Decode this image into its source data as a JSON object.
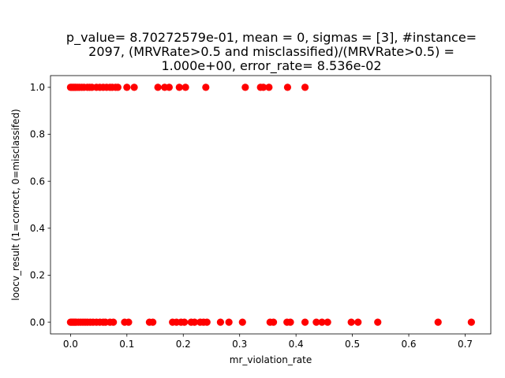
{
  "chart_data": {
    "type": "scatter",
    "title_lines": [
      "p_value= 8.70272579e-01, mean = 0, sigmas = [3], #instance=",
      "2097, (MRVRate>0.5 and misclassified)/(MRVRate>0.5) =",
      "1.000e+00, error_rate= 8.536e-02"
    ],
    "xlabel": "mr_violation_rate",
    "ylabel": "loocv_result (1=correct, 0=misclassifed)",
    "xlim": [
      -0.0355,
      0.7455
    ],
    "ylim": [
      -0.05,
      1.05
    ],
    "xticks": [
      0.0,
      0.1,
      0.2,
      0.3,
      0.4,
      0.5,
      0.6,
      0.7
    ],
    "xtick_labels": [
      "0.0",
      "0.1",
      "0.2",
      "0.3",
      "0.4",
      "0.5",
      "0.6",
      "0.7"
    ],
    "yticks": [
      0.0,
      0.2,
      0.4,
      0.6,
      0.8,
      1.0
    ],
    "ytick_labels": [
      "0.0",
      "0.2",
      "0.4",
      "0.6",
      "0.8",
      "1.0"
    ],
    "grid": false,
    "marker_color": "#ff0000",
    "series": [
      {
        "x": [
          0.0,
          0.002,
          0.004,
          0.006,
          0.008,
          0.01,
          0.013,
          0.016,
          0.02,
          0.024,
          0.03,
          0.034,
          0.038,
          0.046,
          0.052,
          0.058,
          0.064,
          0.07,
          0.074,
          0.08,
          0.084,
          0.1,
          0.113,
          0.155,
          0.167,
          0.175,
          0.193,
          0.204,
          0.24,
          0.31,
          0.337,
          0.342,
          0.352,
          0.385,
          0.416
        ],
        "y": [
          1,
          1,
          1,
          1,
          1,
          1,
          1,
          1,
          1,
          1,
          1,
          1,
          1,
          1,
          1,
          1,
          1,
          1,
          1,
          1,
          1,
          1,
          1,
          1,
          1,
          1,
          1,
          1,
          1,
          1,
          1,
          1,
          1,
          1,
          1
        ]
      },
      {
        "x": [
          0.0,
          0.002,
          0.004,
          0.006,
          0.008,
          0.01,
          0.014,
          0.018,
          0.022,
          0.026,
          0.03,
          0.035,
          0.04,
          0.046,
          0.052,
          0.058,
          0.062,
          0.07,
          0.076,
          0.096,
          0.103,
          0.14,
          0.146,
          0.181,
          0.188,
          0.196,
          0.202,
          0.214,
          0.22,
          0.23,
          0.236,
          0.242,
          0.266,
          0.281,
          0.305,
          0.354,
          0.36,
          0.384,
          0.39,
          0.416,
          0.436,
          0.446,
          0.456,
          0.498,
          0.51,
          0.545,
          0.652,
          0.711
        ],
        "y": [
          0,
          0,
          0,
          0,
          0,
          0,
          0,
          0,
          0,
          0,
          0,
          0,
          0,
          0,
          0,
          0,
          0,
          0,
          0,
          0,
          0,
          0,
          0,
          0,
          0,
          0,
          0,
          0,
          0,
          0,
          0,
          0,
          0,
          0,
          0,
          0,
          0,
          0,
          0,
          0,
          0,
          0,
          0,
          0,
          0,
          0,
          0,
          0
        ]
      }
    ]
  }
}
